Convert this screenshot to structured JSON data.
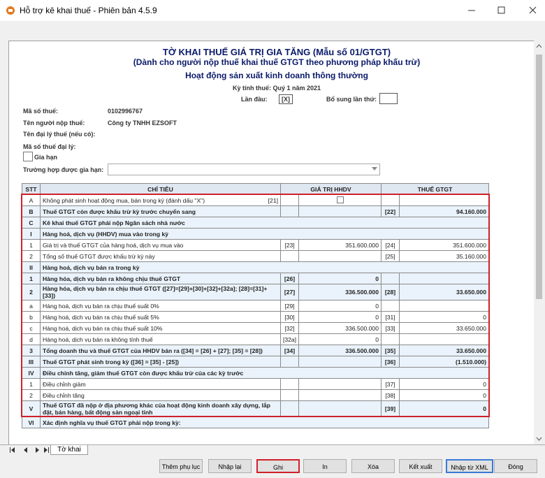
{
  "window": {
    "title": "Hỗ trợ kê khai thuế - Phiên bản 4.5.9"
  },
  "header": {
    "title": "TỜ KHAI THUẾ GIÁ TRỊ GIA TĂNG (Mẫu số 01/GTGT)",
    "subtitle": "(Dành cho người nộp thuế khai thuế GTGT theo phương pháp khấu trừ)",
    "activity": "Hoạt động sản xuất kinh doanh thông thường",
    "period": "Kỳ tính thuế: Quý 1 năm 2021",
    "first_label": "Lần đầu:",
    "first_value": "[X]",
    "supplement_label": "Bổ sung lần thứ:"
  },
  "info": {
    "tax_code_label": "Mã số thuế:",
    "tax_code": "0102996767",
    "payer_label": "Tên người nộp thuế:",
    "payer": "Công ty TNHH EZSOFT",
    "agent_label": "Tên đại lý thuế (nếu có):",
    "agent_code_label": "Mã số thuế đại lý:",
    "extension_label": "Gia hạn",
    "extension_case_label": "Trường hợp được gia hạn:"
  },
  "table": {
    "columns": [
      "STT",
      "CHỈ TIÊU",
      "GIÁ TRỊ HHDV",
      "THUẾ GTGT"
    ],
    "rows": [
      {
        "stt": "A",
        "label": "Không phát sinh hoạt động mua, bán trong kỳ (đánh dấu \"X\")",
        "inline_code": "[21]",
        "checked": false
      },
      {
        "stt": "B",
        "label": "Thuế GTGT còn được khấu trừ kỳ trước chuyển sang",
        "code2": "[22]",
        "value2": "94.160.000",
        "bold": true
      },
      {
        "stt": "C",
        "label": "Kê khai thuế GTGT phải nộp Ngân sách nhà nước",
        "section": true
      },
      {
        "stt": "I",
        "label": "Hàng hoá, dịch vụ (HHDV) mua vào trong kỳ",
        "section": true
      },
      {
        "stt": "1",
        "label": "Giá trị và thuế GTGT của hàng hoá, dịch vụ mua vào",
        "code1": "[23]",
        "value1": "351.600.000",
        "code2": "[24]",
        "value2": "351.600.000"
      },
      {
        "stt": "2",
        "label": "Tổng số thuế GTGT được khấu trừ kỳ này",
        "code2": "[25]",
        "value2": "35.160.000"
      },
      {
        "stt": "II",
        "label": "Hàng hoá, dịch vụ bán ra trong kỳ",
        "section": true
      },
      {
        "stt": "1",
        "label": "Hàng hóa, dịch vụ bán ra không chịu thuế GTGT",
        "code1": "[26]",
        "value1": "0",
        "bold": true
      },
      {
        "stt": "2",
        "label": "Hàng hóa, dịch vụ bán ra chịu thuế GTGT ([27]=[29]+[30]+[32]+[32a]; [28]=[31]+[33])",
        "code1": "[27]",
        "value1": "336.500.000",
        "code2": "[28]",
        "value2": "33.650.000",
        "bold": true
      },
      {
        "stt": "a",
        "label": "Hàng hoá, dịch vụ bán ra chịu thuế suất 0%",
        "code1": "[29]",
        "value1": "0"
      },
      {
        "stt": "b",
        "label": "Hàng hoá, dịch vụ bán ra chịu thuế suất 5%",
        "code1": "[30]",
        "value1": "0",
        "code2": "[31]",
        "value2": "0"
      },
      {
        "stt": "c",
        "label": "Hàng hoá, dịch vụ bán ra chịu thuế suất 10%",
        "code1": "[32]",
        "value1": "336.500.000",
        "code2": "[33]",
        "value2": "33.650.000"
      },
      {
        "stt": "d",
        "label": "Hàng hoá, dịch vụ bán ra không tính thuế",
        "code1": "[32a]",
        "value1": "0"
      },
      {
        "stt": "3",
        "label": "Tổng doanh thu và thuế GTGT của HHDV bán ra ([34] = [26] + [27]; [35] = [28])",
        "code1": "[34]",
        "value1": "336.500.000",
        "code2": "[35]",
        "value2": "33.650.000",
        "bold": true
      },
      {
        "stt": "III",
        "label": "Thuế GTGT phát sinh trong kỳ ([36] = [35] - [25])",
        "code2": "[36]",
        "value2": "(1.510.000)",
        "bold": true
      },
      {
        "stt": "IV",
        "label": "Điều chỉnh tăng, giảm thuế GTGT còn được khấu trừ của các kỳ trước",
        "section": true
      },
      {
        "stt": "1",
        "label": "Điều chỉnh giảm",
        "code2": "[37]",
        "value2": "0"
      },
      {
        "stt": "2",
        "label": "Điều chỉnh tăng",
        "code2": "[38]",
        "value2": "0"
      },
      {
        "stt": "V",
        "label": "Thuế GTGT đã nộp ở địa phương khác của hoạt động kinh doanh xây dựng, lắp đặt, bán hàng, bất động sản ngoại tỉnh",
        "code2": "[39]",
        "value2": "0",
        "bold": true
      },
      {
        "stt": "VI",
        "label": "Xác định nghĩa vụ thuế GTGT phải nộp trong kỳ:",
        "section": true
      }
    ]
  },
  "tabs": [
    "Tờ khai"
  ],
  "buttons": [
    "Thêm phụ lục",
    "Nhập lại",
    "Ghi",
    "In",
    "Xóa",
    "Kết xuất",
    "Nhập từ XML",
    "Đóng"
  ]
}
